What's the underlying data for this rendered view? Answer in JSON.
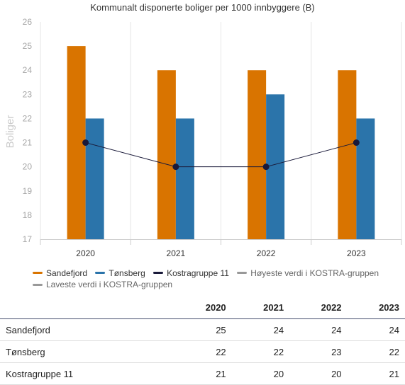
{
  "chart_data": {
    "type": "bar",
    "title": "Kommunalt disponerte boliger per 1000 innbyggere (B)",
    "ylabel": "Boliger",
    "xlabel": "",
    "categories": [
      "2020",
      "2021",
      "2022",
      "2023"
    ],
    "ylim": [
      17,
      26
    ],
    "yticks": [
      17,
      18,
      19,
      20,
      21,
      22,
      23,
      24,
      25,
      26
    ],
    "series": [
      {
        "name": "Sandefjord",
        "type": "bar",
        "color": "#d97400",
        "values": [
          25,
          24,
          24,
          24
        ]
      },
      {
        "name": "Tønsberg",
        "type": "bar",
        "color": "#2b74aa",
        "values": [
          22,
          22,
          23,
          22
        ]
      },
      {
        "name": "Kostragruppe 11",
        "type": "line",
        "color": "#1a1a3a",
        "values": [
          21,
          20,
          20,
          21
        ]
      }
    ],
    "grid": "vertical category separators",
    "legend_position": "bottom-left"
  },
  "legend": [
    {
      "label": "Sandefjord",
      "color": "#d97400",
      "active": true
    },
    {
      "label": "Tønsberg",
      "color": "#2b74aa",
      "active": true
    },
    {
      "label": "Kostragruppe 11",
      "color": "#1a1a3a",
      "active": true
    },
    {
      "label": "Høyeste verdi i KOSTRA-gruppen",
      "color": "#999999",
      "active": false
    },
    {
      "label": "Laveste verdi i KOSTRA-gruppen",
      "color": "#999999",
      "active": false
    }
  ],
  "table": {
    "headers": [
      "",
      "2020",
      "2021",
      "2022",
      "2023"
    ],
    "rows": [
      {
        "label": "Sandefjord",
        "values": [
          "25",
          "24",
          "24",
          "24"
        ]
      },
      {
        "label": "Tønsberg",
        "values": [
          "22",
          "22",
          "23",
          "22"
        ]
      },
      {
        "label": "Kostragruppe 11",
        "values": [
          "21",
          "20",
          "20",
          "21"
        ]
      }
    ]
  }
}
